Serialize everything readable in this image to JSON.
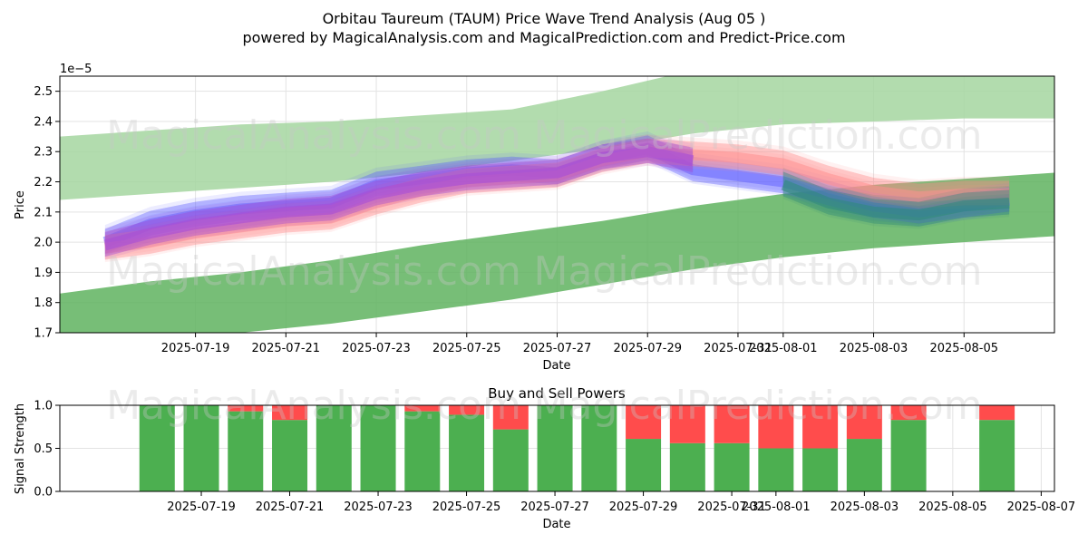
{
  "title": "Orbitau Taureum (TAUM) Price Wave Trend Analysis (Aug 05 )",
  "subtitle": "powered by MagicalAnalysis.com and MagicalPrediction.com and Predict-Price.com",
  "watermarks": [
    "MagicalAnalysis.com",
    "MagicalPrediction.com"
  ],
  "colors": {
    "band_light": "#a5d6a0",
    "band_dark": "#5fb35f",
    "blue": "#6666ff",
    "red": "#ff8f8f",
    "purple": "#a64cd9",
    "buy": "#4caf50",
    "sell": "#ff4c4c"
  },
  "chart_data": [
    {
      "type": "area",
      "title": "",
      "xlabel": "Date",
      "ylabel": "Price",
      "y_scale_note": "1e−5",
      "xlim": [
        "2025-07-16",
        "2025-08-07"
      ],
      "ylim": [
        1.7,
        2.55
      ],
      "x_ticks": [
        "2025-07-19",
        "2025-07-21",
        "2025-07-23",
        "2025-07-25",
        "2025-07-27",
        "2025-07-29",
        "2025-07-31",
        "2025-08-01",
        "2025-08-03",
        "2025-08-05"
      ],
      "x_tick_labels": [
        "2025-07-19",
        "2025-07-21",
        "2025-07-23",
        "2025-07-25",
        "2025-07-27",
        "2025-07-29",
        "2025-07-31",
        "2025-08-01",
        "2025-08-03",
        "2025-08-05"
      ],
      "y_ticks": [
        1.7,
        1.8,
        1.9,
        2.0,
        2.1,
        2.2,
        2.3,
        2.4,
        2.5
      ],
      "y_tick_labels": [
        "1.7",
        "1.8",
        "1.9",
        "2.0",
        "2.1",
        "2.2",
        "2.3",
        "2.4",
        "2.5"
      ],
      "grid": true,
      "series": [
        {
          "kind": "band",
          "color": "#a5d6a0",
          "x": [
            "2025-07-16",
            "2025-07-18",
            "2025-07-20",
            "2025-07-22",
            "2025-07-24",
            "2025-07-26",
            "2025-07-28",
            "2025-07-30",
            "2025-08-01",
            "2025-08-03",
            "2025-08-05",
            "2025-08-07"
          ],
          "upper": [
            2.35,
            2.37,
            2.39,
            2.4,
            2.42,
            2.44,
            2.5,
            2.57,
            2.58,
            2.56,
            2.55,
            2.55
          ],
          "lower": [
            2.14,
            2.16,
            2.18,
            2.2,
            2.23,
            2.27,
            2.31,
            2.36,
            2.39,
            2.4,
            2.41,
            2.41
          ]
        },
        {
          "kind": "band",
          "color": "#5fb35f",
          "x": [
            "2025-07-16",
            "2025-07-18",
            "2025-07-20",
            "2025-07-22",
            "2025-07-24",
            "2025-07-26",
            "2025-07-28",
            "2025-07-30",
            "2025-08-01",
            "2025-08-03",
            "2025-08-05",
            "2025-08-07"
          ],
          "upper": [
            1.83,
            1.87,
            1.9,
            1.94,
            1.99,
            2.03,
            2.07,
            2.12,
            2.16,
            2.19,
            2.21,
            2.23
          ],
          "lower": [
            1.64,
            1.67,
            1.7,
            1.73,
            1.77,
            1.81,
            1.86,
            1.91,
            1.95,
            1.98,
            2.0,
            2.02
          ]
        },
        {
          "kind": "wave",
          "color": "#6666ff",
          "x": [
            "2025-07-17",
            "2025-07-18",
            "2025-07-19",
            "2025-07-20",
            "2025-07-21",
            "2025-07-22",
            "2025-07-23",
            "2025-07-24",
            "2025-07-25",
            "2025-07-26",
            "2025-07-27",
            "2025-07-28",
            "2025-07-29",
            "2025-07-30",
            "2025-07-31",
            "2025-08-01",
            "2025-08-02",
            "2025-08-03",
            "2025-08-04",
            "2025-08-05",
            "2025-08-06"
          ],
          "y": [
            2.0,
            2.06,
            2.09,
            2.11,
            2.12,
            2.13,
            2.19,
            2.21,
            2.23,
            2.24,
            2.23,
            2.28,
            2.31,
            2.24,
            2.22,
            2.2,
            2.16,
            2.12,
            2.1,
            2.12,
            2.14
          ]
        },
        {
          "kind": "wave",
          "color": "#ff8f8f",
          "x": [
            "2025-07-17",
            "2025-07-18",
            "2025-07-19",
            "2025-07-20",
            "2025-07-21",
            "2025-07-22",
            "2025-07-23",
            "2025-07-24",
            "2025-07-25",
            "2025-07-26",
            "2025-07-27",
            "2025-07-28",
            "2025-07-29",
            "2025-07-30",
            "2025-07-31",
            "2025-08-01",
            "2025-08-02",
            "2025-08-03",
            "2025-08-04",
            "2025-08-05",
            "2025-08-06"
          ],
          "y": [
            1.98,
            2.0,
            2.03,
            2.05,
            2.07,
            2.08,
            2.13,
            2.17,
            2.2,
            2.21,
            2.22,
            2.27,
            2.3,
            2.29,
            2.28,
            2.26,
            2.21,
            2.17,
            2.15,
            2.16,
            2.16
          ]
        },
        {
          "kind": "wave",
          "color": "#a64cd9",
          "x": [
            "2025-07-17",
            "2025-07-18",
            "2025-07-19",
            "2025-07-20",
            "2025-07-21",
            "2025-07-22",
            "2025-07-23",
            "2025-07-24",
            "2025-07-25",
            "2025-07-26",
            "2025-07-27",
            "2025-07-28",
            "2025-07-29",
            "2025-07-30"
          ],
          "y": [
            1.99,
            2.03,
            2.06,
            2.08,
            2.1,
            2.11,
            2.16,
            2.19,
            2.21,
            2.22,
            2.23,
            2.28,
            2.3,
            2.27
          ]
        },
        {
          "kind": "wave",
          "color": "#2e8b7a",
          "x": [
            "2025-08-01",
            "2025-08-02",
            "2025-08-03",
            "2025-08-04",
            "2025-08-05",
            "2025-08-06"
          ],
          "y": [
            2.19,
            2.13,
            2.1,
            2.09,
            2.12,
            2.13
          ]
        }
      ]
    },
    {
      "type": "bar",
      "title": "Buy and Sell Powers",
      "xlabel": "Date",
      "ylabel": "Signal Strength",
      "xlim": [
        "2025-07-17",
        "2025-08-07"
      ],
      "ylim": [
        0,
        1
      ],
      "x_ticks": [
        "2025-07-19",
        "2025-07-21",
        "2025-07-23",
        "2025-07-25",
        "2025-07-27",
        "2025-07-29",
        "2025-07-31",
        "2025-08-01",
        "2025-08-03",
        "2025-08-05",
        "2025-08-07"
      ],
      "x_tick_labels": [
        "2025-07-19",
        "2025-07-21",
        "2025-07-23",
        "2025-07-25",
        "2025-07-27",
        "2025-07-29",
        "2025-07-31",
        "2025-08-01",
        "2025-08-03",
        "2025-08-05",
        "2025-08-07"
      ],
      "y_ticks": [
        0.0,
        0.5,
        1.0
      ],
      "y_tick_labels": [
        "0.0",
        "0.5",
        "1.0"
      ],
      "categories": [
        "2025-07-18",
        "2025-07-19",
        "2025-07-20",
        "2025-07-21",
        "2025-07-22",
        "2025-07-23",
        "2025-07-24",
        "2025-07-25",
        "2025-07-26",
        "2025-07-27",
        "2025-07-28",
        "2025-07-29",
        "2025-07-30",
        "2025-07-31",
        "2025-08-01",
        "2025-08-02",
        "2025-08-03",
        "2025-08-04",
        "2025-08-06"
      ],
      "series": [
        {
          "name": "Buy",
          "color": "#4caf50",
          "values": [
            1.0,
            1.0,
            0.93,
            0.83,
            1.0,
            1.0,
            0.93,
            0.89,
            0.72,
            1.0,
            1.0,
            0.61,
            0.56,
            0.56,
            0.5,
            0.5,
            0.61,
            0.83,
            0.83
          ]
        },
        {
          "name": "Sell",
          "color": "#ff4c4c",
          "values": [
            0.0,
            0.0,
            0.07,
            0.17,
            0.0,
            0.0,
            0.07,
            0.11,
            0.28,
            0.0,
            0.0,
            0.39,
            0.44,
            0.44,
            0.5,
            0.5,
            0.39,
            0.17,
            0.17
          ]
        }
      ]
    }
  ]
}
